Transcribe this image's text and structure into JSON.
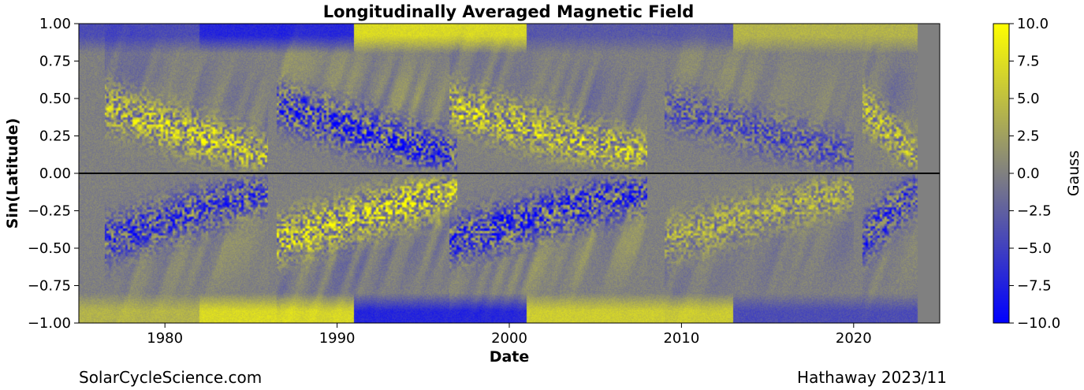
{
  "chart_data": {
    "type": "heatmap",
    "title": "Longitudinally Averaged Magnetic Field",
    "xlabel": "Date",
    "ylabel": "Sin(Latitude)",
    "xlim": [
      1975,
      2025
    ],
    "ylim": [
      -1.0,
      1.0
    ],
    "data_end_year": 2023.7,
    "x_ticks": [
      1980,
      1990,
      2000,
      2010,
      2020
    ],
    "x_tick_labels": [
      "1980",
      "1990",
      "2000",
      "2010",
      "2020"
    ],
    "y_ticks": [
      1.0,
      0.75,
      0.5,
      0.25,
      0.0,
      -0.25,
      -0.5,
      -0.75,
      -1.0
    ],
    "y_tick_labels": [
      "1.00",
      "0.75",
      "0.50",
      "0.25",
      "0.00",
      "−0.25",
      "−0.50",
      "−0.75",
      "−1.00"
    ],
    "equator_line": 0.0,
    "colorbar": {
      "label": "Gauss",
      "range": [
        -10.0,
        10.0
      ],
      "ticks": [
        10.0,
        7.5,
        5.0,
        2.5,
        0.0,
        -2.5,
        -5.0,
        -7.5,
        -10.0
      ],
      "tick_labels": [
        "10.0",
        "7.5",
        "5.0",
        "2.5",
        "0.0",
        "−2.5",
        "−5.0",
        "−7.5",
        "−10.0"
      ],
      "colors": {
        "negative": "#0000ff",
        "zero": "#808080",
        "positive": "#ffff00"
      }
    },
    "polar_field": {
      "note": "Approximate sign of polar field (Gauss) per period, north (sin lat > 0.85) and south (sin lat < -0.85)",
      "periods": [
        {
          "start": 1975,
          "end": 1982,
          "north": -4,
          "south": 4
        },
        {
          "start": 1982,
          "end": 1991,
          "north": -7,
          "south": 7
        },
        {
          "start": 1991,
          "end": 2001,
          "north": 7,
          "south": -7
        },
        {
          "start": 2001,
          "end": 2013,
          "north": -3,
          "south": 6
        },
        {
          "start": 2013,
          "end": 2023.7,
          "north": 4,
          "south": -4
        }
      ]
    },
    "active_regions": [
      {
        "center_year": 1981,
        "start": 1976.5,
        "end": 1986,
        "north": 6,
        "south": -6,
        "north_lat": [
          0.05,
          0.65
        ],
        "south_lat": [
          -0.65,
          -0.05
        ]
      },
      {
        "center_year": 1991,
        "start": 1986.5,
        "end": 1997,
        "north": -7,
        "south": 7,
        "north_lat": [
          0.05,
          0.65
        ],
        "south_lat": [
          -0.65,
          -0.05
        ]
      },
      {
        "center_year": 2001,
        "start": 1996.5,
        "end": 2008,
        "north": 6,
        "south": -7,
        "north_lat": [
          0.05,
          0.65
        ],
        "south_lat": [
          -0.65,
          -0.05
        ]
      },
      {
        "center_year": 2014,
        "start": 2009,
        "end": 2020,
        "north": -4,
        "south": 4,
        "north_lat": [
          0.05,
          0.55
        ],
        "south_lat": [
          -0.55,
          -0.05
        ]
      },
      {
        "center_year": 2024,
        "start": 2020.5,
        "end": 2023.7,
        "north": 5,
        "south": -6,
        "north_lat": [
          0.05,
          0.5
        ],
        "south_lat": [
          -0.5,
          -0.05
        ]
      }
    ]
  },
  "footer": {
    "left": "SolarCycleScience.com",
    "right": "Hathaway 2023/11"
  }
}
